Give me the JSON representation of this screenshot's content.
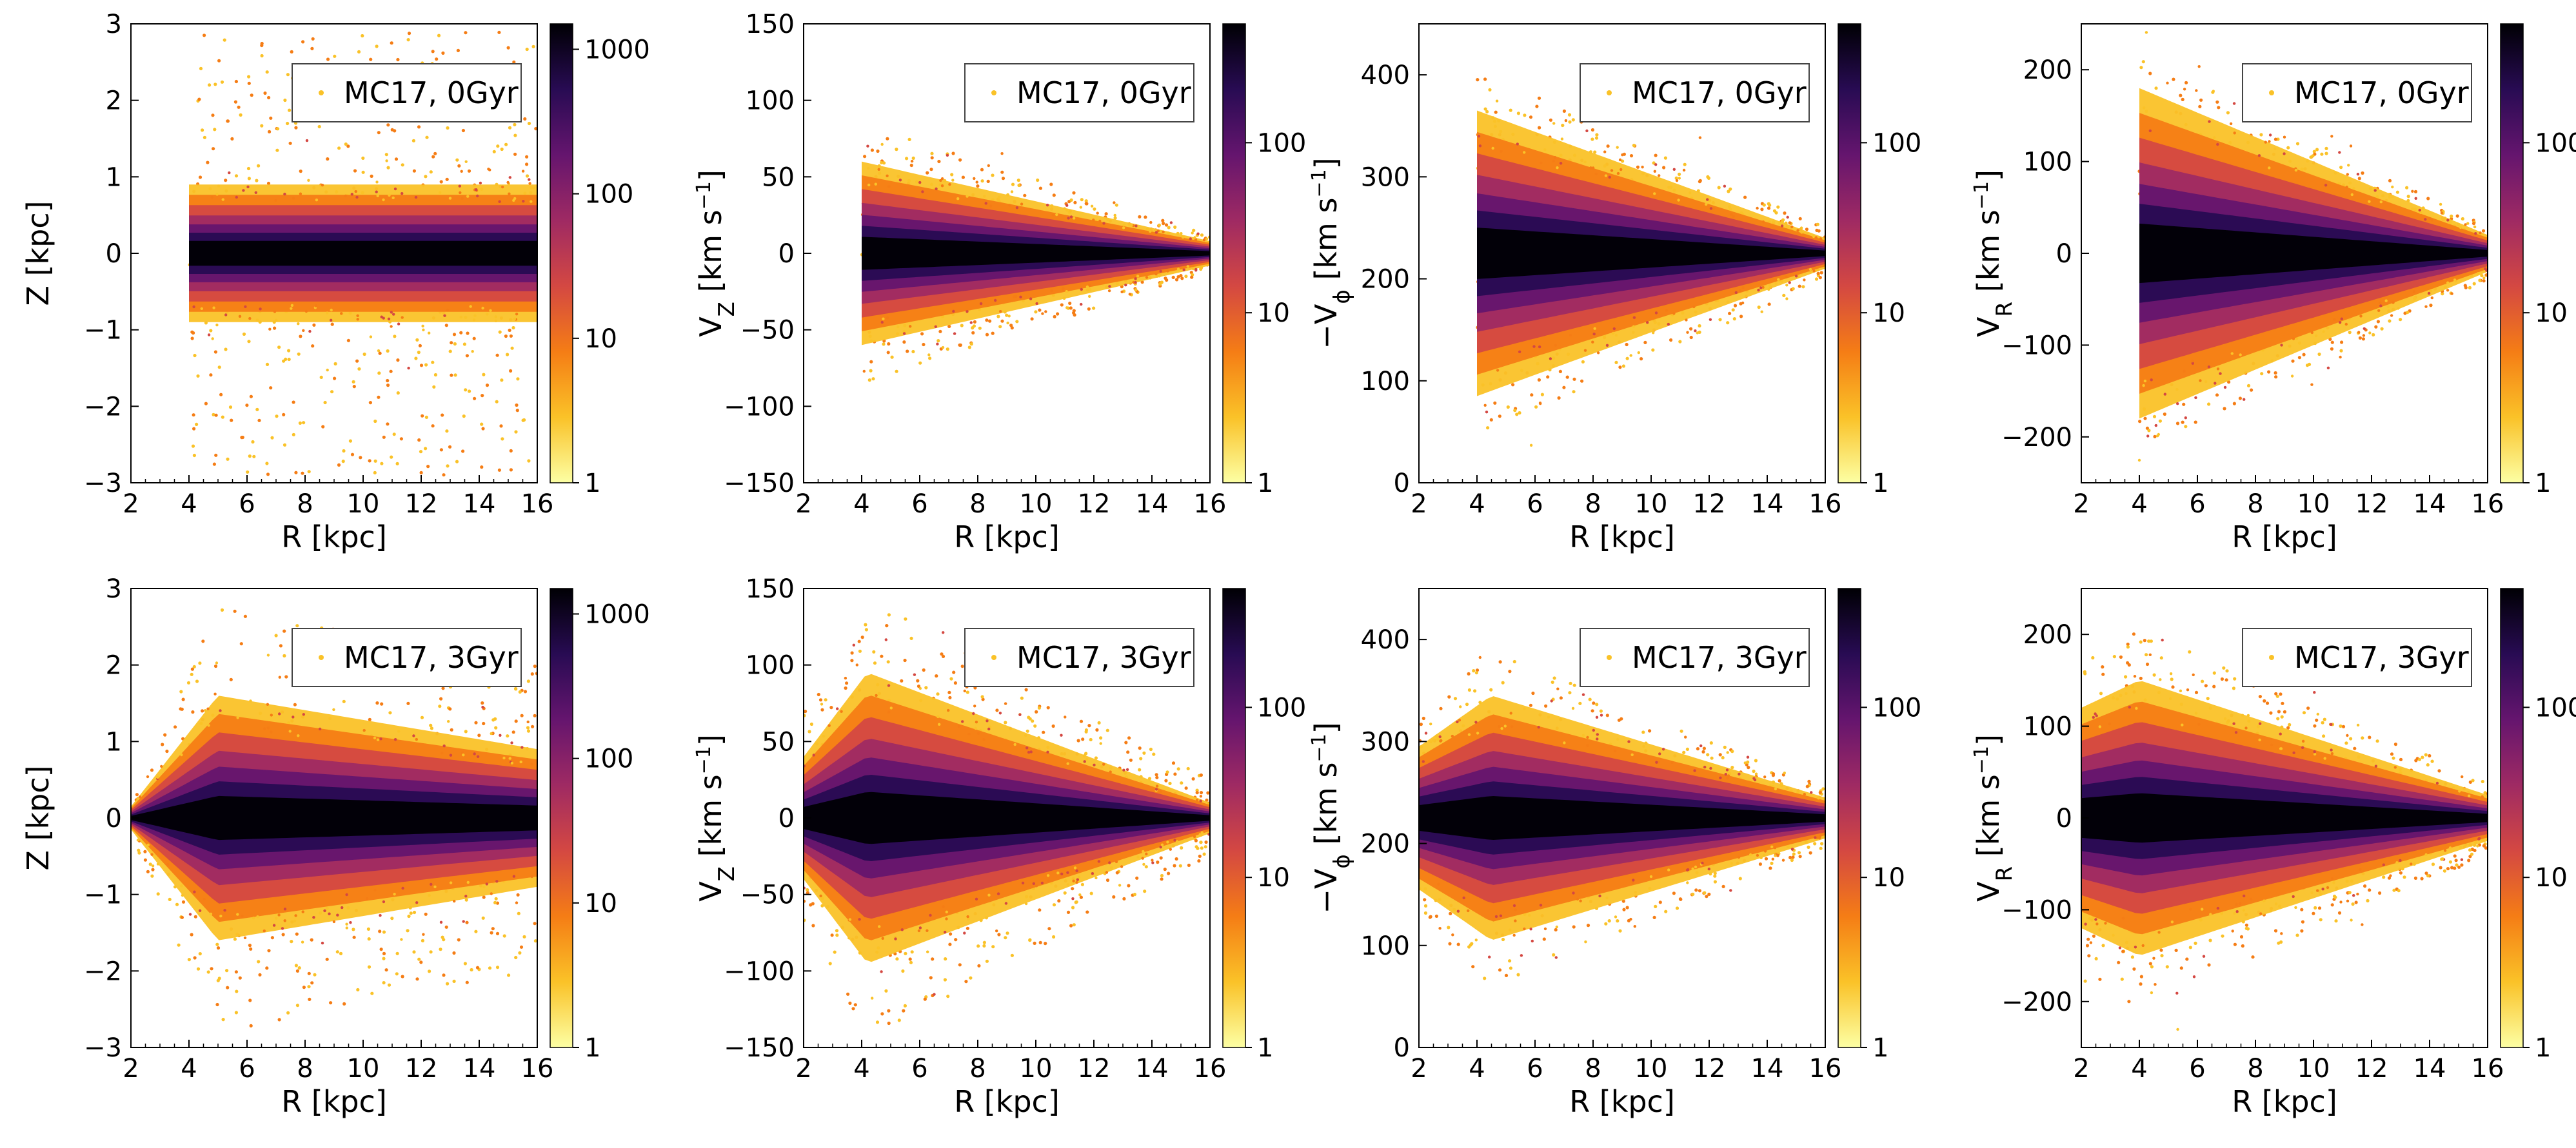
{
  "figure": {
    "rows": 2,
    "cols": 4
  },
  "colormap": [
    "#fcffa4",
    "#fac228",
    "#f57d15",
    "#d44842",
    "#9f2a63",
    "#65156e",
    "#280b53",
    "#000004"
  ],
  "chart_data": [
    {
      "type": "heatmap",
      "legend": "MC17, 0Gyr",
      "xlabel": "R [kpc]",
      "ylabel": "Z [kpc]",
      "xlim": [
        2,
        16
      ],
      "ylim": [
        -3,
        3
      ],
      "xticks": [
        2,
        4,
        6,
        8,
        10,
        12,
        14,
        16
      ],
      "yticks": [
        -3,
        -2,
        -1,
        0,
        1,
        2,
        3
      ],
      "ytick_labels": [
        "−3",
        "−2",
        "−1",
        "0",
        "1",
        "2",
        "3"
      ],
      "colorbar": {
        "ticks": [
          1,
          10,
          100,
          1000
        ],
        "max": 1500
      },
      "model": {
        "r_start": 4,
        "center": 0,
        "spread_start": 0.9,
        "spread_end": 0.9,
        "outer_start": 2.9,
        "outer_end": 2.9,
        "dense": 0.55,
        "shape": "flat"
      }
    },
    {
      "type": "heatmap",
      "legend": "MC17, 0Gyr",
      "xlabel": "R [kpc]",
      "ylabel": "V_Z [km s^-1]",
      "xlim": [
        2,
        16
      ],
      "ylim": [
        -150,
        150
      ],
      "xticks": [
        2,
        4,
        6,
        8,
        10,
        12,
        14,
        16
      ],
      "yticks": [
        -150,
        -100,
        -50,
        0,
        50,
        100,
        150
      ],
      "ytick_labels": [
        "−150",
        "−100",
        "−50",
        "0",
        "50",
        "100",
        "150"
      ],
      "colorbar": {
        "ticks": [
          1,
          10,
          100
        ],
        "max": 500
      },
      "model": {
        "r_start": 4,
        "center": 0,
        "spread_start": 60,
        "spread_end": 8,
        "outer_start": 85,
        "outer_end": 12,
        "dense": 0.7,
        "shape": "taper"
      }
    },
    {
      "type": "heatmap",
      "legend": "MC17, 0Gyr",
      "xlabel": "R [kpc]",
      "ylabel": "-V_phi [km s^-1]",
      "xlim": [
        2,
        16
      ],
      "ylim": [
        0,
        450
      ],
      "xticks": [
        2,
        4,
        6,
        8,
        10,
        12,
        14,
        16
      ],
      "yticks": [
        0,
        100,
        200,
        300,
        400
      ],
      "ytick_labels": [
        "0",
        "100",
        "200",
        "300",
        "400"
      ],
      "colorbar": {
        "ticks": [
          1,
          10,
          100
        ],
        "max": 500
      },
      "model": {
        "r_start": 4,
        "center": 225,
        "spread_start": 140,
        "spread_end": 15,
        "outer_start": 180,
        "outer_end": 25,
        "dense": 0.6,
        "shape": "taper"
      }
    },
    {
      "type": "heatmap",
      "legend": "MC17, 0Gyr",
      "xlabel": "R [kpc]",
      "ylabel": "V_R [km s^-1]",
      "xlim": [
        2,
        16
      ],
      "ylim": [
        -250,
        250
      ],
      "xticks": [
        2,
        4,
        6,
        8,
        10,
        12,
        14,
        16
      ],
      "yticks": [
        -200,
        -100,
        0,
        100,
        200
      ],
      "ytick_labels": [
        "−200",
        "−100",
        "0",
        "100",
        "200"
      ],
      "colorbar": {
        "ticks": [
          1,
          10,
          100
        ],
        "max": 500
      },
      "model": {
        "r_start": 4,
        "center": 0,
        "spread_start": 180,
        "spread_end": 20,
        "outer_start": 215,
        "outer_end": 30,
        "dense": 0.6,
        "shape": "taper"
      }
    },
    {
      "type": "heatmap",
      "legend": "MC17, 3Gyr",
      "xlabel": "R [kpc]",
      "ylabel": "Z [kpc]",
      "xlim": [
        2,
        16
      ],
      "ylim": [
        -3,
        3
      ],
      "xticks": [
        2,
        4,
        6,
        8,
        10,
        12,
        14,
        16
      ],
      "yticks": [
        -3,
        -2,
        -1,
        0,
        1,
        2,
        3
      ],
      "ytick_labels": [
        "−3",
        "−2",
        "−1",
        "0",
        "1",
        "2",
        "3"
      ],
      "colorbar": {
        "ticks": [
          1,
          10,
          100,
          1000
        ],
        "max": 1500
      },
      "model": {
        "r_start": 2,
        "center": 0,
        "spread_start": 0.15,
        "spread_end": 0.9,
        "outer_start": 0.3,
        "outer_end": 2.0,
        "peak_r": 5,
        "peak_spread": 1.6,
        "peak_outer": 2.8,
        "dense": 0.5,
        "shape": "grow"
      }
    },
    {
      "type": "heatmap",
      "legend": "MC17, 3Gyr",
      "xlabel": "R [kpc]",
      "ylabel": "V_Z [km s^-1]",
      "xlim": [
        2,
        16
      ],
      "ylim": [
        -150,
        150
      ],
      "xticks": [
        2,
        4,
        6,
        8,
        10,
        12,
        14,
        16
      ],
      "yticks": [
        -150,
        -100,
        -50,
        0,
        50,
        100,
        150
      ],
      "ytick_labels": [
        "−150",
        "−100",
        "−50",
        "0",
        "50",
        "100",
        "150"
      ],
      "colorbar": {
        "ticks": [
          1,
          10,
          100
        ],
        "max": 500
      },
      "model": {
        "r_start": 2,
        "center": 0,
        "spread_start": 40,
        "spread_end": 10,
        "outer_start": 70,
        "outer_end": 25,
        "peak_r": 4.2,
        "peak_spread": 95,
        "peak_outer": 145,
        "dense": 0.55,
        "shape": "grow"
      }
    },
    {
      "type": "heatmap",
      "legend": "MC17, 3Gyr",
      "xlabel": "R [kpc]",
      "ylabel": "-V_phi [km s^-1]",
      "xlim": [
        2,
        16
      ],
      "ylim": [
        0,
        450
      ],
      "xticks": [
        2,
        4,
        6,
        8,
        10,
        12,
        14,
        16
      ],
      "yticks": [
        0,
        100,
        200,
        300,
        400
      ],
      "ytick_labels": [
        "0",
        "100",
        "200",
        "300",
        "400"
      ],
      "colorbar": {
        "ticks": [
          1,
          10,
          100
        ],
        "max": 500
      },
      "model": {
        "r_start": 2,
        "center": 225,
        "spread_start": 70,
        "spread_end": 20,
        "outer_start": 95,
        "outer_end": 30,
        "peak_r": 4.5,
        "peak_spread": 120,
        "peak_outer": 165,
        "dense": 0.55,
        "shape": "grow"
      }
    },
    {
      "type": "heatmap",
      "legend": "MC17, 3Gyr",
      "xlabel": "R [kpc]",
      "ylabel": "V_R [km s^-1]",
      "xlim": [
        2,
        16
      ],
      "ylim": [
        -250,
        250
      ],
      "xticks": [
        2,
        4,
        6,
        8,
        10,
        12,
        14,
        16
      ],
      "yticks": [
        -200,
        -100,
        0,
        100,
        200
      ],
      "ytick_labels": [
        "−200",
        "−100",
        "0",
        "100",
        "200"
      ],
      "colorbar": {
        "ticks": [
          1,
          10,
          100
        ],
        "max": 500
      },
      "model": {
        "r_start": 2,
        "center": 0,
        "spread_start": 120,
        "spread_end": 25,
        "outer_start": 180,
        "outer_end": 40,
        "peak_r": 4,
        "peak_spread": 150,
        "peak_outer": 210,
        "dense": 0.55,
        "shape": "grow"
      }
    }
  ]
}
